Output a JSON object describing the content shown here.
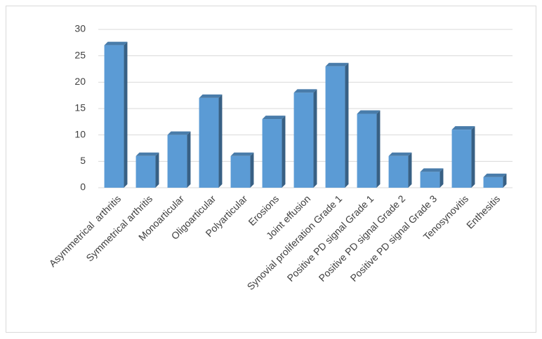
{
  "chart_data": {
    "type": "bar",
    "categories": [
      "Asymmetrical  arthritis",
      "Symmetrical arthritis",
      "Monoarticular",
      "Oligoarticular",
      "Polyarticular",
      "Erosions",
      "Joint effusion",
      "Synovial proliferation Grade 1",
      "Positive PD signal Grade 1",
      "Positive PD signal Grade 2",
      "Positive PD signal Grade 3",
      "Tenosynovitis",
      "Enthesitis"
    ],
    "values": [
      27,
      6,
      10,
      17,
      6,
      13,
      18,
      23,
      14,
      6,
      3,
      11,
      2
    ],
    "color": "#5b9bd5",
    "ylim": [
      0,
      30
    ],
    "yticks": [
      0,
      5,
      10,
      15,
      20,
      25,
      30
    ],
    "grid": true
  }
}
